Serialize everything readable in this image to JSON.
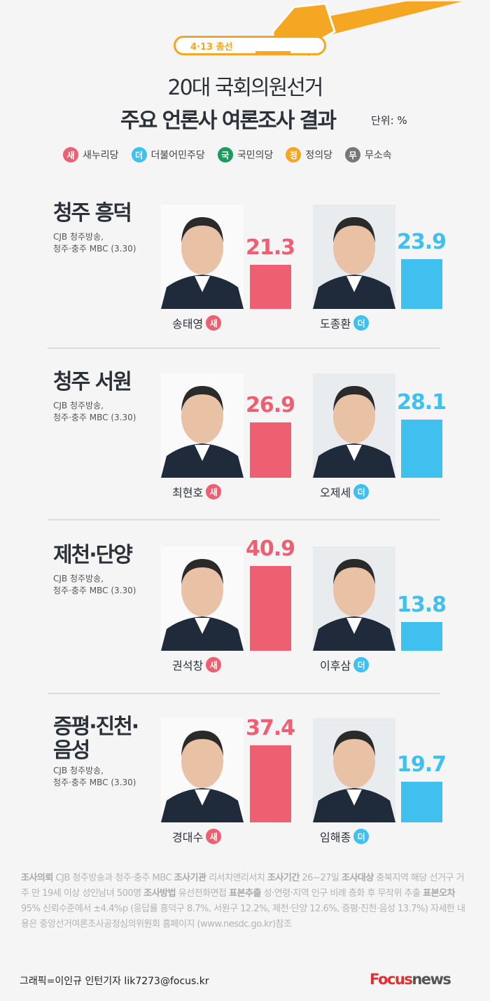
{
  "header": {
    "tag": "4·13 총선",
    "title_line1": "20대 국회의원선거",
    "title_line2": "주요 언론사 여론조사 결과",
    "unit": "단위: %"
  },
  "colors": {
    "saenuri": "#ee5f72",
    "minju": "#3fc0ee",
    "gukmin": "#1a9a5c",
    "jeongui": "#f5a623",
    "musosok": "#777777",
    "accent": "#f5a623"
  },
  "legend": [
    {
      "badge": "새",
      "label": "새누리당",
      "color": "#ee5f72"
    },
    {
      "badge": "더",
      "label": "더불어민주당",
      "color": "#3fc0ee"
    },
    {
      "badge": "국",
      "label": "국민의당",
      "color": "#1a9a5c"
    },
    {
      "badge": "정",
      "label": "정의당",
      "color": "#f5a623"
    },
    {
      "badge": "무",
      "label": "무소속",
      "color": "#777777"
    }
  ],
  "districts": [
    {
      "region": "청주 흥덕",
      "source1": "CJB 청주방송,",
      "source2": "청주·충주 MBC (3.30)",
      "candidates": [
        {
          "name": "송태영",
          "party": "새",
          "value": 21.3,
          "value_label": "21.3"
        },
        {
          "name": "도종환",
          "party": "더",
          "value": 23.9,
          "value_label": "23.9"
        }
      ]
    },
    {
      "region": "청주 서원",
      "source1": "CJB 청주방송,",
      "source2": "청주·충주 MBC (3.30)",
      "candidates": [
        {
          "name": "최현호",
          "party": "새",
          "value": 26.9,
          "value_label": "26.9"
        },
        {
          "name": "오제세",
          "party": "더",
          "value": 28.1,
          "value_label": "28.1"
        }
      ]
    },
    {
      "region": "제천·단양",
      "source1": "CJB 청주방송,",
      "source2": "청주·충주 MBC (3.30)",
      "candidates": [
        {
          "name": "권석창",
          "party": "새",
          "value": 40.9,
          "value_label": "40.9"
        },
        {
          "name": "이후삼",
          "party": "더",
          "value": 13.8,
          "value_label": "13.8"
        }
      ]
    },
    {
      "region": "증평·진천·\n음성",
      "source1": "CJB 청주방송,",
      "source2": "청주·충주 MBC (3.30)",
      "candidates": [
        {
          "name": "경대수",
          "party": "새",
          "value": 37.4,
          "value_label": "37.4"
        },
        {
          "name": "임해종",
          "party": "더",
          "value": 19.7,
          "value_label": "19.7"
        }
      ]
    }
  ],
  "footnote": [
    {
      "k": "조사의뢰",
      "v": " CJB 청주방송과 청주·충주 MBC  "
    },
    {
      "k": "조사기관",
      "v": " 리서치앤리서치 "
    },
    {
      "k": "조사기간",
      "v": " 26~27일 "
    },
    {
      "k": "조사대상",
      "v": " 충북지역 해당 선거구 거주 만 19세 이상 성인남녀 500명 "
    },
    {
      "k": "조사방법",
      "v": " 유선전화면접 "
    },
    {
      "k": "표본추출",
      "v": " 성·연령·지역 인구 비례 층화 후 무작위 추출 "
    },
    {
      "k": "표본오차",
      "v": " 95% 신뢰수준에서 ±4.4%p (응답률 흥덕구 8.7%, 서원구 12.2%, 제천·단양 12.6%, 증평·진천·음성 13.7%)  자세한 내용은 중앙선거여론조사공정심의위원회 홈페이지 (www.nesdc.go.kr)참조"
    }
  ],
  "credit": "그래픽=이인규 인턴기자 lik7273@focus.kr",
  "logo": {
    "part1": "Focus",
    "part2": "news"
  }
}
